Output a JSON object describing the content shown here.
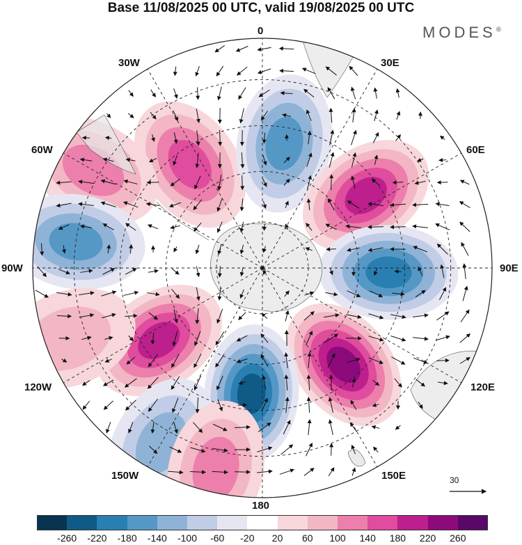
{
  "title": "Base 11/08/2025 00 UTC, valid 19/08/2025 00 UTC",
  "brand": {
    "name": "MODES",
    "mark": "®"
  },
  "map": {
    "projection": "south polar stereographic",
    "longitude_labels": {
      "top": "0",
      "bottom": "180",
      "left": "90W",
      "right": "90E",
      "nw30": "30W",
      "ne30": "30E",
      "nw60": "60W",
      "ne60": "60E",
      "sw120": "120W",
      "se120": "120E",
      "sw150": "150W",
      "se150": "150E"
    }
  },
  "reference_vector": {
    "label": "30"
  },
  "colorbar": {
    "ticks": [
      "-260",
      "-220",
      "-180",
      "-140",
      "-100",
      "-60",
      "-20",
      "20",
      "60",
      "100",
      "140",
      "180",
      "220",
      "260"
    ],
    "colors": [
      "#08344f",
      "#0f5a87",
      "#2a7fb2",
      "#5598c6",
      "#8fb3d6",
      "#c1cde6",
      "#e6e6f2",
      "#ffffff",
      "#f7d7db",
      "#f3b6c4",
      "#ec7fab",
      "#e04c9e",
      "#bd1f8c",
      "#8c0a7c",
      "#5a0868"
    ]
  },
  "anomalies": [
    {
      "name": "positive-south-atlantic",
      "lon": -35,
      "r": 0.55,
      "value": 140
    },
    {
      "name": "positive-west",
      "lon": -60,
      "r": 0.85,
      "value": 100
    },
    {
      "name": "negative-atlantic",
      "lon": 10,
      "r": 0.55,
      "value": -140
    },
    {
      "name": "positive-indian",
      "lon": 55,
      "r": 0.55,
      "value": 200
    },
    {
      "name": "negative-indian",
      "lon": 92,
      "r": 0.55,
      "value": -200
    },
    {
      "name": "positive-australia",
      "lon": 140,
      "r": 0.55,
      "value": 240
    },
    {
      "name": "negative-pacific",
      "lon": 185,
      "r": 0.55,
      "value": -220
    },
    {
      "name": "positive-pacific",
      "lon": 235,
      "r": 0.55,
      "value": 180
    },
    {
      "name": "negative-drake",
      "lon": -82,
      "r": 0.82,
      "value": -140
    },
    {
      "name": "positive-east-pacific",
      "lon": 250,
      "r": 0.9,
      "value": 60
    },
    {
      "name": "negative-southeast-pacific",
      "lon": 210,
      "r": 0.88,
      "value": -100
    },
    {
      "name": "positive-south-pacific",
      "lon": 193,
      "r": 0.9,
      "value": 100
    }
  ]
}
